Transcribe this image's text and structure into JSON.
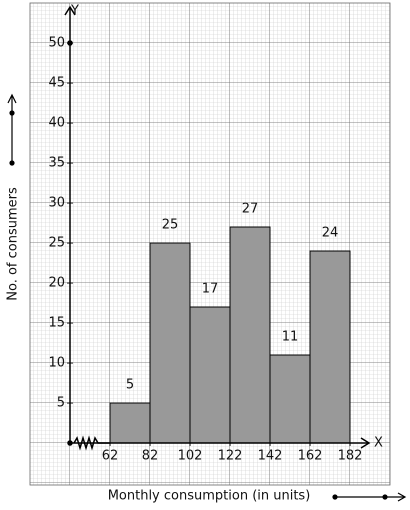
{
  "chart_data": {
    "type": "histogram",
    "x_label": "Monthly consumption (in units)",
    "y_label": "No. of consumers",
    "x_axis_name": "X",
    "y_axis_name": "Y",
    "bins": [
      62,
      82,
      102,
      122,
      142,
      162,
      182
    ],
    "values": [
      5,
      25,
      17,
      27,
      11,
      24
    ],
    "color": "#999999",
    "xlim": [
      42,
      192
    ],
    "ylim": [
      0,
      55
    ],
    "xticks": [
      62,
      82,
      102,
      122,
      142,
      162,
      182
    ],
    "yticks": [
      5,
      10,
      15,
      20,
      25,
      30,
      35,
      40,
      45,
      50
    ],
    "grid": true
  }
}
